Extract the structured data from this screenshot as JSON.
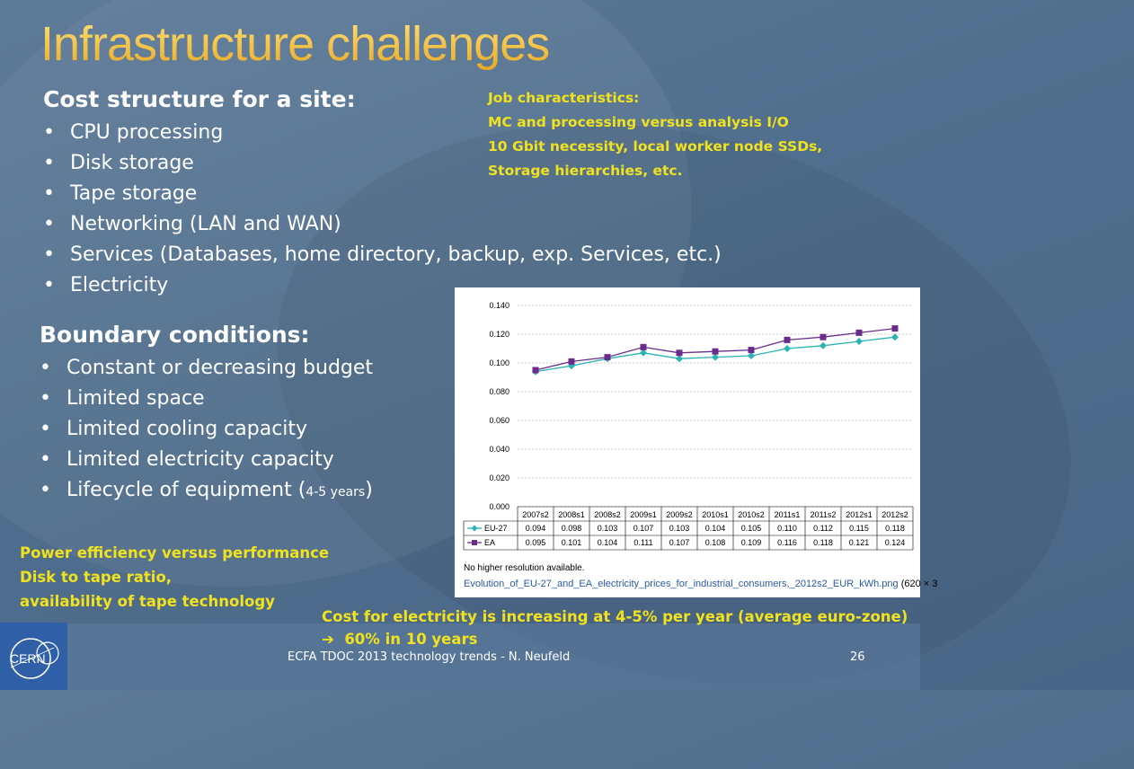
{
  "slide": {
    "title": "Infrastructure challenges",
    "cost_heading": "Cost structure for a site:",
    "cost_items": [
      "CPU processing",
      "Disk storage",
      "Tape storage",
      "Networking (LAN and WAN)",
      "Services (Databases, home directory, backup, exp. Services, etc.)",
      "Electricity"
    ],
    "job_notes": [
      "Job characteristics:",
      "MC and processing  versus analysis I/O",
      "10 Gbit necessity, local worker node SSDs,",
      "Storage hierarchies, etc."
    ],
    "boundary_heading": "Boundary conditions:",
    "boundary_items": [
      "Constant or decreasing budget",
      "Limited space",
      "Limited cooling capacity",
      "Limited electricity capacity"
    ],
    "lifecycle_prefix": "Lifecycle of equipment (",
    "lifecycle_small": "4-5 years",
    "lifecycle_suffix": ")",
    "power_notes": [
      "Power efficiency versus performance",
      "Disk to tape ratio,",
      "availability of tape technology"
    ],
    "electricity_note_1": "Cost for electricity is increasing at 4-5% per year (average euro-zone)",
    "electricity_note_2": "60% in 10 years",
    "arrow_glyph": "➔",
    "footer": "ECFA TDOC 2013 technology trends - N. Neufeld",
    "page_number": "26",
    "logo_text": "CERN"
  },
  "image_caption": {
    "line1": "No higher resolution available.",
    "filename": "Evolution_of_EU-27_and_EA_electricity_prices_for_industrial_consumers,_2012s2_EUR_kWh.png",
    "dims": "(620 × 3"
  },
  "chart_data": {
    "type": "line",
    "categories": [
      "2007s2",
      "2008s1",
      "2008s2",
      "2009s1",
      "2009s2",
      "2010s1",
      "2010s2",
      "2011s1",
      "2011s2",
      "2012s1",
      "2012s2"
    ],
    "series": [
      {
        "name": "EU-27",
        "color": "#2ab3b3",
        "marker": "diamond",
        "values": [
          0.094,
          0.098,
          0.103,
          0.107,
          0.103,
          0.104,
          0.105,
          0.11,
          0.112,
          0.115,
          0.118
        ]
      },
      {
        "name": "EA",
        "color": "#6a2d8c",
        "marker": "square",
        "values": [
          0.095,
          0.101,
          0.104,
          0.111,
          0.107,
          0.108,
          0.109,
          0.116,
          0.118,
          0.121,
          0.124
        ]
      }
    ],
    "value_labels": {
      "EU-27": [
        "0.094",
        "0.098",
        "0.103",
        "0.107",
        "0.103",
        "0.104",
        "0.105",
        "0.110",
        "0.112",
        "0.115",
        "0.118"
      ],
      "EA": [
        "0.095",
        "0.101",
        "0.104",
        "0.111",
        "0.107",
        "0.108",
        "0.109",
        "0.116",
        "0.118",
        "0.121",
        "0.124"
      ]
    },
    "yticks": [
      "0.000",
      "0.020",
      "0.040",
      "0.060",
      "0.080",
      "0.100",
      "0.120",
      "0.140"
    ],
    "ylim": [
      0,
      0.14
    ],
    "grid": true,
    "title": "",
    "xlabel": "",
    "ylabel": ""
  }
}
